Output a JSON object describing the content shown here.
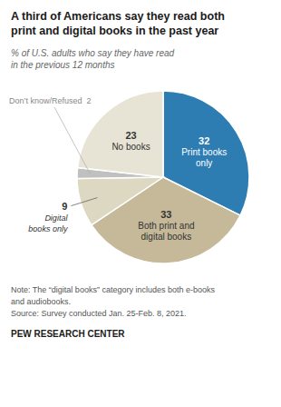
{
  "chart_data": {
    "type": "pie",
    "title": "A third of Americans say they read both\nprint and digital books in the past year",
    "subtitle": "% of U.S. adults who say they have read\nin the previous 12 months",
    "categories": [
      "Print books\nonly",
      "Both print and\ndigital books",
      "Digital\nbooks only",
      "Don’t know/Refused",
      "No books"
    ],
    "values": [
      32,
      33,
      9,
      2,
      23
    ],
    "colors": [
      "#2d7db3",
      "#c5b99a",
      "#ddd8c2",
      "#c0c0c0",
      "#e8e4d5"
    ],
    "data_labels": true,
    "annotations": [
      "Note: The “digital books” category includes both e-books",
      "and audiobooks.",
      "Source: Survey conducted Jan. 25-Feb. 8, 2021.",
      "PEW RESEARCH CENTER"
    ]
  }
}
